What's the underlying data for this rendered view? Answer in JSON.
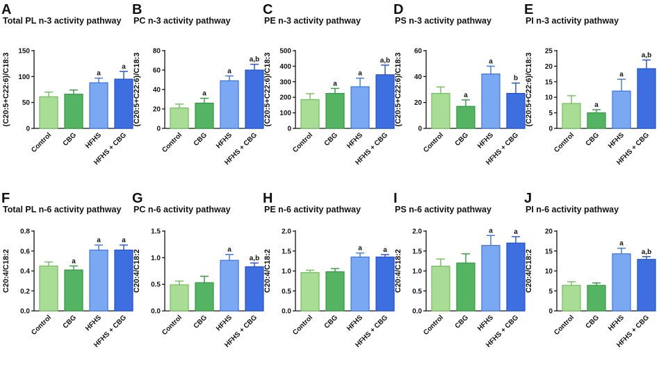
{
  "figure": {
    "categories": [
      "Control",
      "CBG",
      "HFHS",
      "HFHS + CBG"
    ],
    "colors": {
      "bar_fills": [
        "#a9dc95",
        "#55b463",
        "#7aa8f3",
        "#3d6fe0"
      ],
      "bar_strokes": [
        "#6fbe59",
        "#2f9a3e",
        "#3b73de",
        "#1f4fcf"
      ]
    }
  },
  "chart_data": [
    {
      "letter": "A",
      "type": "bar",
      "title": "Total PL n-3 activity pathway",
      "ylabel": "(C20:5+C22:6)/C18:3",
      "ylim": [
        0,
        150
      ],
      "yticks": [
        "0",
        "50",
        "100",
        "150"
      ],
      "ytick_values": [
        0,
        50,
        100,
        150
      ],
      "categories": [
        "Control",
        "CBG",
        "HFHS",
        "HFHS + CBG"
      ],
      "values": [
        61,
        66,
        88,
        95
      ],
      "errors": [
        9,
        8,
        9,
        15
      ],
      "sig": [
        "",
        "",
        "a",
        "a"
      ]
    },
    {
      "letter": "B",
      "type": "bar",
      "title": "PC n-3 activity pathway",
      "ylabel": "(C20:5+C22:6)/C18:3",
      "ylim": [
        0,
        80
      ],
      "yticks": [
        "0",
        "20",
        "40",
        "60",
        "80"
      ],
      "ytick_values": [
        0,
        20,
        40,
        60,
        80
      ],
      "categories": [
        "Control",
        "CBG",
        "HFHS",
        "HFHS + CBG"
      ],
      "values": [
        21,
        26,
        49,
        60
      ],
      "errors": [
        4,
        5,
        5,
        6
      ],
      "sig": [
        "",
        "a",
        "a",
        "a,b"
      ]
    },
    {
      "letter": "C",
      "type": "bar",
      "title": "PE n-3 activity pathway",
      "ylabel": "(C20:5+C22:6)/C18:3",
      "ylim": [
        0,
        500
      ],
      "yticks": [
        "0",
        "100",
        "200",
        "300",
        "400",
        "500"
      ],
      "ytick_values": [
        0,
        100,
        200,
        300,
        400,
        500
      ],
      "categories": [
        "Control",
        "CBG",
        "HFHS",
        "HFHS + CBG"
      ],
      "values": [
        185,
        225,
        268,
        345
      ],
      "errors": [
        38,
        32,
        55,
        62
      ],
      "sig": [
        "",
        "a",
        "a",
        "a,b"
      ]
    },
    {
      "letter": "D",
      "type": "bar",
      "title": "PS n-3 activity pathway",
      "ylabel": "(C20:5+C22:6)/C18:3",
      "ylim": [
        0,
        60
      ],
      "yticks": [
        "0",
        "20",
        "40",
        "60"
      ],
      "ytick_values": [
        0,
        20,
        40,
        60
      ],
      "categories": [
        "Control",
        "CBG",
        "HFHS",
        "HFHS + CBG"
      ],
      "values": [
        27,
        17,
        42,
        27
      ],
      "errors": [
        5,
        5,
        6,
        8
      ],
      "sig": [
        "",
        "a",
        "a",
        "b"
      ]
    },
    {
      "letter": "E",
      "type": "bar",
      "title": "PI n-3 activity pathway",
      "ylabel": "(C20:5+C22:6)/C18:3",
      "ylim": [
        0,
        25
      ],
      "yticks": [
        "0",
        "5",
        "10",
        "15",
        "20",
        "25"
      ],
      "ytick_values": [
        0,
        5,
        10,
        15,
        20,
        25
      ],
      "categories": [
        "Control",
        "CBG",
        "HFHS",
        "HFHS + CBG"
      ],
      "values": [
        8,
        5,
        12,
        19.2
      ],
      "errors": [
        2.5,
        1.0,
        3.8,
        2.8
      ],
      "sig": [
        "",
        "a",
        "a",
        "a,b"
      ]
    },
    {
      "letter": "F",
      "type": "bar",
      "title": "Total PL n-6 activity pathway",
      "ylabel": "C20:4/C18:2",
      "ylim": [
        0,
        0.8
      ],
      "yticks": [
        "0.0",
        "0.2",
        "0.4",
        "0.6",
        "0.8"
      ],
      "ytick_values": [
        0,
        0.2,
        0.4,
        0.6,
        0.8
      ],
      "categories": [
        "Control",
        "CBG",
        "HFHS",
        "HFHS + CBG"
      ],
      "values": [
        0.45,
        0.41,
        0.61,
        0.61
      ],
      "errors": [
        0.04,
        0.04,
        0.05,
        0.05
      ],
      "sig": [
        "",
        "a",
        "a",
        "a"
      ]
    },
    {
      "letter": "G",
      "type": "bar",
      "title": "PC n-6 activity pathway",
      "ylabel": "C20:4/C18:2",
      "ylim": [
        0,
        1.5
      ],
      "yticks": [
        "0.0",
        "0.5",
        "1.0",
        "1.5"
      ],
      "ytick_values": [
        0,
        0.5,
        1.0,
        1.5
      ],
      "categories": [
        "Control",
        "CBG",
        "HFHS",
        "HFHS + CBG"
      ],
      "values": [
        0.49,
        0.53,
        0.95,
        0.83
      ],
      "errors": [
        0.07,
        0.12,
        0.11,
        0.07
      ],
      "sig": [
        "",
        "",
        "a",
        "a,b"
      ]
    },
    {
      "letter": "H",
      "type": "bar",
      "title": "PE n-6 activity pathway",
      "ylabel": "C20:4/C18:2",
      "ylim": [
        0,
        2.0
      ],
      "yticks": [
        "0.0",
        "0.5",
        "1.0",
        "1.5",
        "2.0"
      ],
      "ytick_values": [
        0,
        0.5,
        1.0,
        1.5,
        2.0
      ],
      "categories": [
        "Control",
        "CBG",
        "HFHS",
        "HFHS + CBG"
      ],
      "values": [
        0.96,
        0.98,
        1.35,
        1.35
      ],
      "errors": [
        0.06,
        0.08,
        0.1,
        0.06
      ],
      "sig": [
        "",
        "",
        "a",
        "a"
      ]
    },
    {
      "letter": "I",
      "type": "bar",
      "title": "PS n-6 activity pathway",
      "ylabel": "C20:4/C18:2",
      "ylim": [
        0,
        2.0
      ],
      "yticks": [
        "0.0",
        "0.5",
        "1.0",
        "1.5",
        "2.0"
      ],
      "ytick_values": [
        0,
        0.5,
        1.0,
        1.5,
        2.0
      ],
      "categories": [
        "Control",
        "CBG",
        "HFHS",
        "HFHS + CBG"
      ],
      "values": [
        1.12,
        1.2,
        1.64,
        1.7
      ],
      "errors": [
        0.18,
        0.23,
        0.25,
        0.16
      ],
      "sig": [
        "",
        "",
        "a",
        "a"
      ]
    },
    {
      "letter": "J",
      "type": "bar",
      "title": "PI n-6 activity pathway",
      "ylabel": "C20:4/C18:2",
      "ylim": [
        0,
        20
      ],
      "yticks": [
        "0",
        "5",
        "10",
        "15",
        "20"
      ],
      "ytick_values": [
        0,
        5,
        10,
        15,
        20
      ],
      "categories": [
        "Control",
        "CBG",
        "HFHS",
        "HFHS + CBG"
      ],
      "values": [
        6.4,
        6.4,
        14.3,
        12.9
      ],
      "errors": [
        0.9,
        0.6,
        1.4,
        0.7
      ],
      "sig": [
        "",
        "",
        "a",
        "a,b"
      ]
    }
  ]
}
